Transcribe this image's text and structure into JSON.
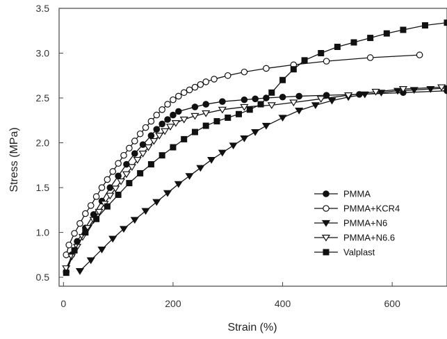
{
  "chart_data": {
    "type": "line",
    "xlabel": "Strain (%)",
    "ylabel": "Stress (MPa)",
    "xlim": [
      -8,
      700
    ],
    "ylim": [
      0.4,
      3.5
    ],
    "xticks": [
      0,
      200,
      400,
      600
    ],
    "yticks": [
      0.5,
      1.0,
      1.5,
      2.0,
      2.5,
      3.0,
      3.5
    ],
    "xtick_labels": [
      "0",
      "200",
      "400",
      "600"
    ],
    "ytick_labels": [
      "0.5",
      "1.0",
      "1.5",
      "2.0",
      "2.5",
      "3.0",
      "3.5"
    ],
    "grid": false,
    "legend_position": "bottom-right",
    "series": [
      {
        "name": "PMMA",
        "marker": "filled-circle",
        "x": [
          5,
          15,
          25,
          40,
          55,
          70,
          85,
          100,
          115,
          130,
          145,
          160,
          170,
          180,
          190,
          200,
          210,
          240,
          260,
          290,
          330,
          350,
          370,
          400,
          430,
          480,
          540,
          620,
          700
        ],
        "y": [
          0.56,
          0.75,
          0.9,
          1.05,
          1.2,
          1.35,
          1.5,
          1.63,
          1.76,
          1.88,
          1.98,
          2.08,
          2.15,
          2.21,
          2.26,
          2.31,
          2.35,
          2.4,
          2.43,
          2.46,
          2.48,
          2.49,
          2.5,
          2.51,
          2.52,
          2.53,
          2.54,
          2.56,
          2.58
        ]
      },
      {
        "name": "PMMA+KCR4",
        "marker": "open-circle",
        "x": [
          5,
          10,
          20,
          30,
          40,
          50,
          60,
          70,
          80,
          90,
          100,
          110,
          120,
          130,
          140,
          150,
          160,
          170,
          180,
          190,
          200,
          210,
          220,
          230,
          240,
          250,
          260,
          275,
          300,
          330,
          370,
          420,
          480,
          560,
          650
        ],
        "y": [
          0.75,
          0.86,
          0.99,
          1.1,
          1.21,
          1.3,
          1.4,
          1.5,
          1.59,
          1.68,
          1.77,
          1.86,
          1.94,
          2.02,
          2.1,
          2.17,
          2.24,
          2.31,
          2.37,
          2.43,
          2.48,
          2.52,
          2.56,
          2.59,
          2.62,
          2.65,
          2.68,
          2.71,
          2.75,
          2.79,
          2.83,
          2.87,
          2.91,
          2.95,
          2.98
        ]
      },
      {
        "name": "PMMA+N6",
        "marker": "filled-triangle-down",
        "x": [
          30,
          50,
          70,
          90,
          110,
          130,
          150,
          170,
          190,
          210,
          230,
          250,
          270,
          290,
          310,
          330,
          350,
          370,
          400,
          430,
          460,
          490,
          520,
          550,
          580,
          610,
          640,
          670,
          700
        ],
        "y": [
          0.57,
          0.69,
          0.81,
          0.93,
          1.04,
          1.14,
          1.24,
          1.34,
          1.44,
          1.54,
          1.63,
          1.72,
          1.81,
          1.89,
          1.97,
          2.05,
          2.12,
          2.19,
          2.28,
          2.36,
          2.42,
          2.47,
          2.51,
          2.54,
          2.56,
          2.58,
          2.59,
          2.6,
          2.61
        ]
      },
      {
        "name": "PMMA+N6.6",
        "marker": "open-triangle-down",
        "x": [
          5,
          15,
          25,
          35,
          45,
          55,
          65,
          75,
          85,
          95,
          105,
          115,
          125,
          135,
          145,
          155,
          165,
          175,
          185,
          195,
          205,
          220,
          240,
          260,
          290,
          330,
          380,
          420,
          470,
          520,
          570,
          620,
          690
        ],
        "y": [
          0.6,
          0.73,
          0.84,
          0.95,
          1.05,
          1.14,
          1.23,
          1.32,
          1.41,
          1.49,
          1.57,
          1.65,
          1.73,
          1.81,
          1.88,
          1.95,
          2.02,
          2.08,
          2.13,
          2.18,
          2.22,
          2.26,
          2.3,
          2.33,
          2.37,
          2.4,
          2.42,
          2.45,
          2.49,
          2.53,
          2.57,
          2.6,
          2.62
        ]
      },
      {
        "name": "Valplast",
        "marker": "filled-square",
        "x": [
          5,
          20,
          40,
          60,
          80,
          100,
          120,
          140,
          160,
          180,
          200,
          220,
          240,
          260,
          280,
          300,
          320,
          340,
          360,
          380,
          400,
          420,
          440,
          470,
          500,
          530,
          560,
          590,
          620,
          660,
          700
        ],
        "y": [
          0.55,
          0.8,
          1.0,
          1.15,
          1.29,
          1.42,
          1.55,
          1.66,
          1.76,
          1.86,
          1.95,
          2.04,
          2.12,
          2.19,
          2.24,
          2.28,
          2.32,
          2.37,
          2.43,
          2.56,
          2.7,
          2.82,
          2.92,
          3.0,
          3.07,
          3.12,
          3.17,
          3.22,
          3.26,
          3.31,
          3.34
        ]
      }
    ],
    "colors": {
      "series": "#111111",
      "axis": "#444444",
      "text": "#222222"
    }
  }
}
